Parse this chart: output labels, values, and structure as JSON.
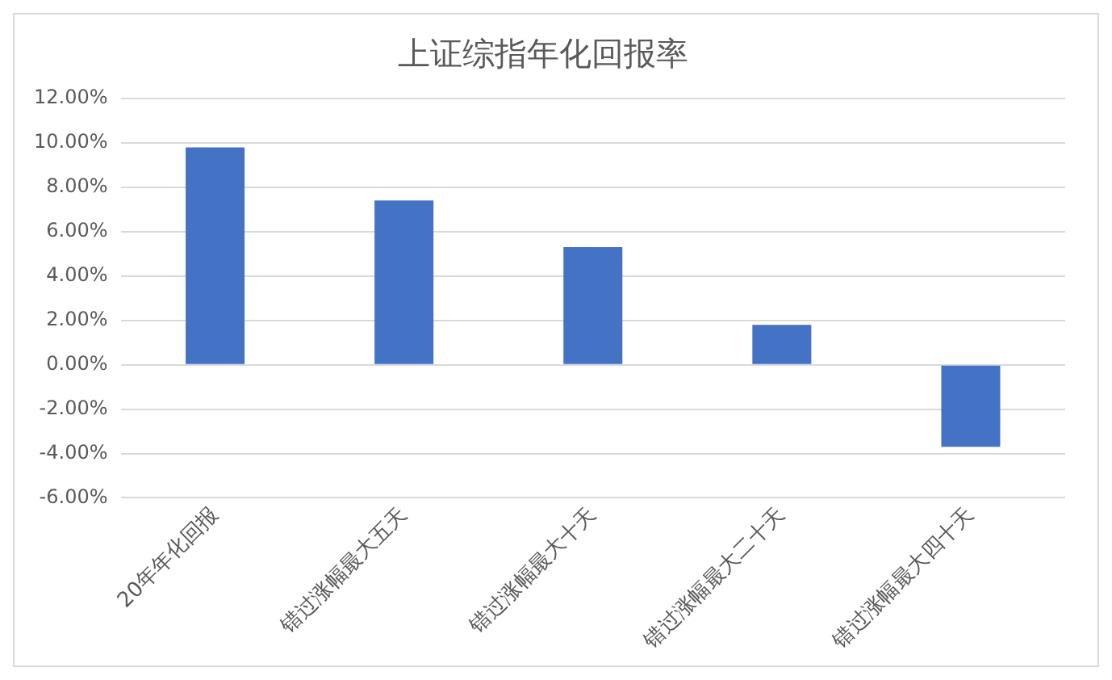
{
  "chart_data": {
    "type": "bar",
    "title": "上证综指年化回报率",
    "categories": [
      "20年年化回报",
      "错过涨幅最大五天",
      "错过涨幅最大十天",
      "错过涨幅最大二十天",
      "错过涨幅最大四十天"
    ],
    "values": [
      9.8,
      7.4,
      5.3,
      1.8,
      -3.7
    ],
    "color": "#4472c4",
    "ylim": [
      -6,
      12
    ],
    "yticks": [
      {
        "value": -6,
        "label": "-6.00%"
      },
      {
        "value": -4,
        "label": "-4.00%"
      },
      {
        "value": -2,
        "label": "-2.00%"
      },
      {
        "value": 0,
        "label": "0.00%"
      },
      {
        "value": 2,
        "label": "2.00%"
      },
      {
        "value": 4,
        "label": "4.00%"
      },
      {
        "value": 6,
        "label": "6.00%"
      },
      {
        "value": 8,
        "label": "8.00%"
      },
      {
        "value": 10,
        "label": "10.00%"
      },
      {
        "value": 12,
        "label": "12.00%"
      }
    ],
    "grid": "y",
    "legend": false
  }
}
